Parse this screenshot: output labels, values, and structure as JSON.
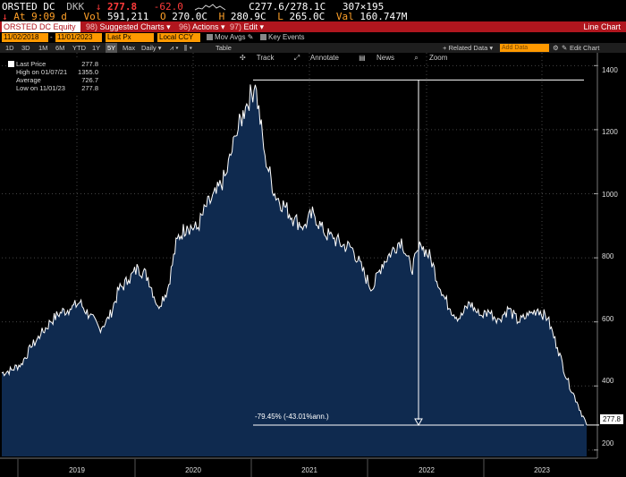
{
  "quote": {
    "ticker": "ORSTED DC",
    "currency": "DKK",
    "arrow": "↓",
    "last": "277.8",
    "change": "-62.0",
    "bid_ask": "C277.6/278.1C",
    "size": "307×195",
    "time_label": "At 9:09 d",
    "vol_label": "Vol",
    "vol": "591,211",
    "open_label": "O",
    "open": "270.0C",
    "high_label": "H",
    "high": "280.9C",
    "low_label": "L",
    "low": "265.0C",
    "val_label": "Val",
    "val": "160.747M"
  },
  "toolbar1": {
    "security": "ORSTED DC Equity",
    "suggested_num": "98)",
    "suggested": "Suggested Charts ▾",
    "actions_num": "96)",
    "actions": "Actions ▾",
    "edit_num": "97)",
    "edit": "Edit ▾",
    "title": "Line Chart"
  },
  "toolbar2": {
    "start_date": "11/02/2018",
    "end_date": "11/01/2023",
    "field": "Last Px",
    "currency": "Local CCY",
    "mov_avgs": "Mov Avgs",
    "key_events": "Key Events"
  },
  "toolbar3": {
    "periods": [
      "1D",
      "3D",
      "1M",
      "6M",
      "YTD",
      "1Y",
      "5Y",
      "Max"
    ],
    "selected_period": "5Y",
    "frequency": "Daily ▾",
    "table": "Table",
    "related": "+ Related Data ▾",
    "add_data": "Add Data",
    "edit_chart": "Edit Chart"
  },
  "chart_tools": {
    "track": "Track",
    "annotate": "Annotate",
    "news": "News",
    "zoom": "Zoom"
  },
  "legend": {
    "last_label": "Last Price",
    "last_value": "277.8",
    "high_label": "High on 01/07/21",
    "high_value": "1355.0",
    "avg_label": "Average",
    "avg_value": "726.7",
    "low_label": "Low on 11/01/23",
    "low_value": "277.8"
  },
  "annotation": {
    "drop": "-79.45% (-43.01%ann.)"
  },
  "last_badge": "277.8",
  "colors": {
    "background": "#000000",
    "area_fill": "#0f2a4f",
    "line": "#ffffff",
    "toolbar": "#b0161e",
    "accent": "#ff9900",
    "negative": "#ff3b3b"
  },
  "chart_data": {
    "type": "area",
    "title": "",
    "xlabel": "",
    "ylabel": "",
    "ylim": [
      180,
      1440
    ],
    "yticks": [
      200,
      400,
      600,
      800,
      1000,
      1200,
      1400
    ],
    "xticks": [
      "2019",
      "2020",
      "2021",
      "2022",
      "2023"
    ],
    "grid": true,
    "legend_placement": "top-left",
    "series": [
      {
        "name": "Last Price",
        "x": [
          "2018-11",
          "2018-12",
          "2019-01",
          "2019-02",
          "2019-03",
          "2019-04",
          "2019-05",
          "2019-06",
          "2019-07",
          "2019-08",
          "2019-09",
          "2019-10",
          "2019-11",
          "2019-12",
          "2020-01",
          "2020-02",
          "2020-03",
          "2020-04",
          "2020-05",
          "2020-06",
          "2020-07",
          "2020-08",
          "2020-09",
          "2020-10",
          "2020-11",
          "2020-12",
          "2021-01",
          "2021-02",
          "2021-03",
          "2021-04",
          "2021-05",
          "2021-06",
          "2021-07",
          "2021-08",
          "2021-09",
          "2021-10",
          "2021-11",
          "2021-12",
          "2022-01",
          "2022-02",
          "2022-03",
          "2022-04",
          "2022-05",
          "2022-06",
          "2022-07",
          "2022-08",
          "2022-09",
          "2022-10",
          "2022-11",
          "2022-12",
          "2023-01",
          "2023-02",
          "2023-03",
          "2023-04",
          "2023-05",
          "2023-06",
          "2023-07",
          "2023-08",
          "2023-09",
          "2023-10",
          "2023-11"
        ],
        "values": [
          440,
          450,
          470,
          520,
          560,
          600,
          630,
          640,
          660,
          620,
          580,
          610,
          700,
          730,
          770,
          740,
          650,
          700,
          860,
          900,
          890,
          960,
          1000,
          1060,
          1180,
          1270,
          1340,
          1120,
          1000,
          960,
          920,
          900,
          940,
          880,
          860,
          840,
          830,
          760,
          700,
          780,
          820,
          860,
          760,
          840,
          800,
          700,
          640,
          610,
          660,
          620,
          630,
          610,
          640,
          600,
          620,
          640,
          610,
          520,
          420,
          350,
          278
        ]
      }
    ]
  }
}
